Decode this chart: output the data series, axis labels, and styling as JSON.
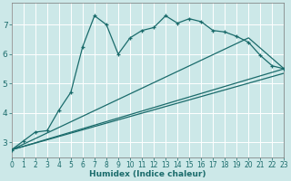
{
  "xlabel": "Humidex (Indice chaleur)",
  "bg_color": "#cce8e8",
  "line_color": "#1a6b6b",
  "grid_color": "#ffffff",
  "xlim": [
    0,
    23
  ],
  "ylim": [
    2.5,
    7.75
  ],
  "xtick_vals": [
    0,
    1,
    2,
    3,
    4,
    5,
    6,
    7,
    8,
    9,
    10,
    11,
    12,
    13,
    14,
    15,
    16,
    17,
    18,
    19,
    20,
    21,
    22,
    23
  ],
  "ytick_vals": [
    3,
    4,
    5,
    6,
    7
  ],
  "curve_x": [
    0,
    1,
    2,
    3,
    4,
    5,
    6,
    7,
    8,
    9,
    10,
    11,
    12,
    13,
    14,
    15,
    16,
    17,
    18,
    19,
    20,
    21,
    22,
    23
  ],
  "curve_y": [
    2.75,
    3.05,
    3.35,
    3.4,
    4.1,
    4.7,
    6.25,
    7.3,
    7.0,
    6.0,
    6.55,
    6.8,
    6.9,
    7.3,
    7.05,
    7.2,
    7.1,
    6.8,
    6.75,
    6.6,
    6.4,
    5.95,
    5.6,
    5.5
  ],
  "line2_x": [
    0,
    20,
    23
  ],
  "line2_y": [
    2.75,
    6.55,
    5.5
  ],
  "line3_x": [
    0,
    23
  ],
  "line3_y": [
    2.75,
    5.35
  ],
  "line4_x": [
    0,
    23
  ],
  "line4_y": [
    2.75,
    5.5
  ]
}
